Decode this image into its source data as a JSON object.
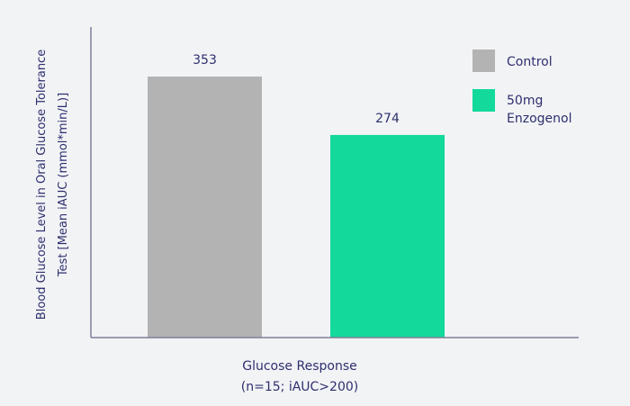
{
  "chart_data": {
    "type": "bar",
    "categories": [
      "Control",
      "50mg Enzogenol"
    ],
    "values": [
      353,
      274
    ],
    "value_labels": [
      "353",
      "274"
    ],
    "colors": [
      "#b3b3b3",
      "#13d99b"
    ],
    "legend": [
      {
        "label_lines": [
          "Control"
        ],
        "color": "#b3b3b3"
      },
      {
        "label_lines": [
          "50mg",
          "Enzogenol"
        ],
        "color": "#13d99b"
      }
    ],
    "legend_position": "top-right",
    "ylabel_lines": [
      "Blood Glucose Level in Oral Glucose Tolerance",
      "Test [Mean iAUC (mmol*min/L)]"
    ],
    "xlabel_lines": [
      "Glucose Response",
      "(n=15; iAUC>200)"
    ],
    "ylim": [
      0,
      420
    ],
    "grid": false,
    "axis_color": "#7d7f9a",
    "background": "#f2f3f5"
  }
}
